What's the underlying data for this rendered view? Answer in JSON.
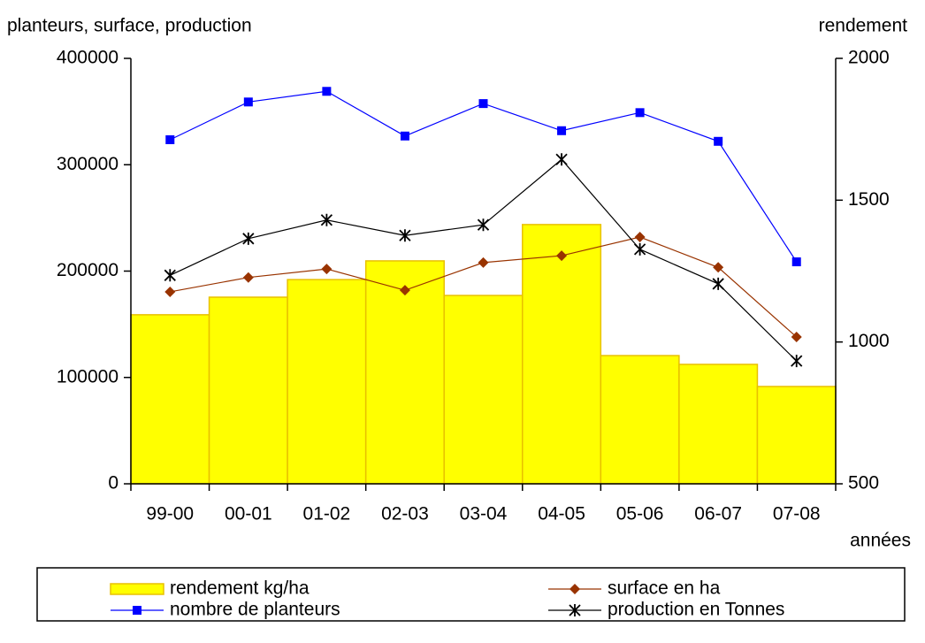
{
  "chart_data": {
    "type": "bar",
    "y_label": "planteurs, surface, production",
    "y2_label": "rendement",
    "x_label": "années",
    "categories": [
      "99-00",
      "00-01",
      "01-02",
      "02-03",
      "03-04",
      "04-05",
      "05-06",
      "06-07",
      "07-08"
    ],
    "ylim": [
      0,
      400000
    ],
    "yticks": [
      0,
      100000,
      200000,
      300000,
      400000
    ],
    "y2lim": [
      500,
      2000
    ],
    "y2ticks": [
      500,
      1000,
      1500,
      2000
    ],
    "series": [
      {
        "name": "rendement kg/ha",
        "type": "bar",
        "axis": "y2",
        "color": "#ffff00",
        "edge": "#e8c000",
        "values": [
          1096,
          1158,
          1220,
          1286,
          1164,
          1414,
          952,
          921,
          843
        ]
      },
      {
        "name": "surface en ha",
        "type": "line",
        "marker": "diamond",
        "color": "#993300",
        "values": [
          180500,
          194000,
          202000,
          182000,
          208000,
          214500,
          232000,
          203500,
          138000
        ]
      },
      {
        "name": "nombre de planteurs",
        "type": "line",
        "marker": "square",
        "color": "#0000ff",
        "values": [
          323500,
          359000,
          369000,
          327000,
          357500,
          332000,
          349000,
          322000,
          208700
        ]
      },
      {
        "name": "production en Tonnes",
        "type": "line",
        "marker": "star",
        "color": "#000000",
        "values": [
          196000,
          230500,
          248000,
          233500,
          243500,
          305000,
          220500,
          188000,
          115500
        ]
      }
    ]
  }
}
